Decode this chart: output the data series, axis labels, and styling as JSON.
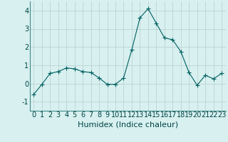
{
  "x": [
    0,
    1,
    2,
    3,
    4,
    5,
    6,
    7,
    8,
    9,
    10,
    11,
    12,
    13,
    14,
    15,
    16,
    17,
    18,
    19,
    20,
    21,
    22,
    23
  ],
  "y": [
    -0.6,
    -0.05,
    0.55,
    0.65,
    0.85,
    0.8,
    0.65,
    0.6,
    0.3,
    -0.05,
    -0.05,
    0.3,
    1.85,
    3.6,
    4.1,
    3.3,
    2.5,
    2.4,
    1.75,
    0.6,
    -0.1,
    0.45,
    0.25,
    0.55
  ],
  "line_color": "#006060",
  "marker": "+",
  "marker_size": 4,
  "bg_color": "#d8f0f0",
  "grid_color": "#b8cece",
  "xlabel": "Humidex (Indice chaleur)",
  "xlabel_fontsize": 8,
  "tick_fontsize": 7,
  "ylim": [
    -1.5,
    4.5
  ],
  "yticks": [
    -1,
    0,
    1,
    2,
    3,
    4
  ],
  "xlim": [
    -0.5,
    23.5
  ],
  "xticks": [
    0,
    1,
    2,
    3,
    4,
    5,
    6,
    7,
    8,
    9,
    10,
    11,
    12,
    13,
    14,
    15,
    16,
    17,
    18,
    19,
    20,
    21,
    22,
    23
  ]
}
